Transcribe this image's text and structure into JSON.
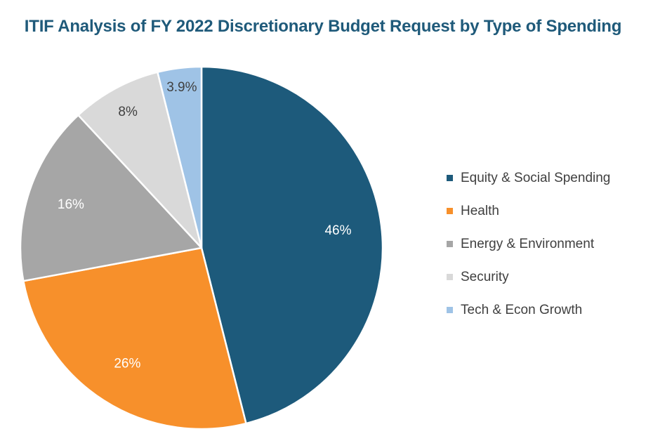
{
  "chart_data": {
    "type": "pie",
    "title": "ITIF Analysis of FY 2022 Discretionary Budget Request by Type of Spending",
    "legend_position": "right",
    "slices": [
      {
        "name": "Equity & Social Spending",
        "value": 46,
        "label": "46%",
        "color": "#1d5a7b",
        "label_color": "#ffffff"
      },
      {
        "name": "Health",
        "value": 26,
        "label": "26%",
        "color": "#f7902b",
        "label_color": "#ffffff"
      },
      {
        "name": "Energy & Environment",
        "value": 16,
        "label": "16%",
        "color": "#a6a6a6",
        "label_color": "#ffffff"
      },
      {
        "name": "Security",
        "value": 8,
        "label": "8%",
        "color": "#d9d9d9",
        "label_color": "#404040"
      },
      {
        "name": "Tech & Econ Growth",
        "value": 3.9,
        "label": "3.9%",
        "color": "#9fc3e6",
        "label_color": "#404040"
      }
    ]
  }
}
